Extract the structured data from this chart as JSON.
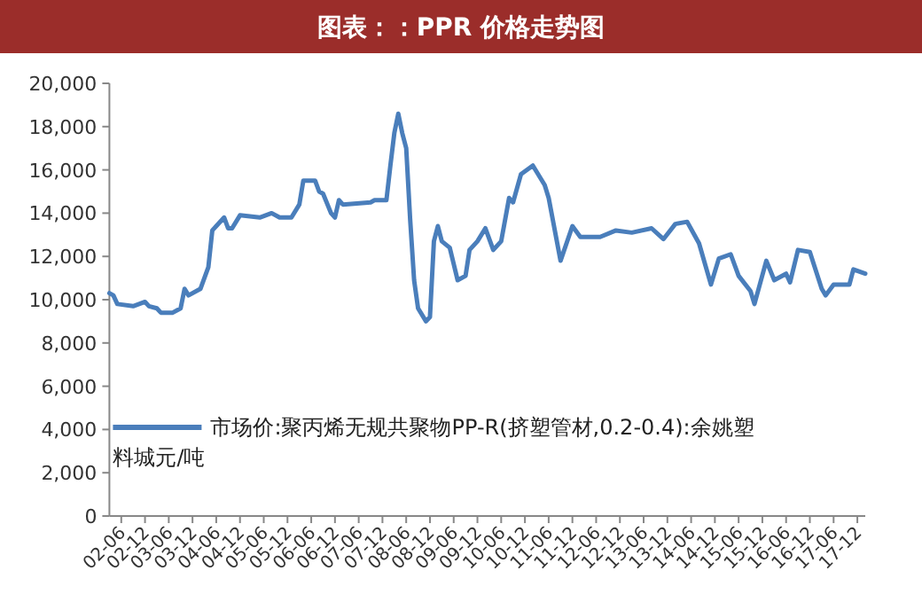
{
  "chart_data": {
    "type": "line",
    "title": "图表：：PPR 价格走势图",
    "x": [
      "2002-03",
      "2002-04",
      "2002-05",
      "2002-09",
      "2002-12",
      "2003-01",
      "2003-03",
      "2003-04",
      "2003-07",
      "2003-09",
      "2003-10",
      "2003-11",
      "2004-02",
      "2004-04",
      "2004-05",
      "2004-06",
      "2004-08",
      "2004-09",
      "2004-10",
      "2004-12",
      "2005-05",
      "2005-08",
      "2005-10",
      "2006-01",
      "2006-03",
      "2006-04",
      "2006-07",
      "2006-08",
      "2006-09",
      "2006-11",
      "2006-12",
      "2007-01",
      "2007-02",
      "2007-09",
      "2007-10",
      "2008-01",
      "2008-02",
      "2008-03",
      "2008-04",
      "2008-05",
      "2008-06",
      "2008-07",
      "2008-08",
      "2008-09",
      "2008-11",
      "2008-12",
      "2009-01",
      "2009-02",
      "2009-03",
      "2009-05",
      "2009-07",
      "2009-09",
      "2009-10",
      "2009-12",
      "2010-02",
      "2010-04",
      "2010-06",
      "2010-08",
      "2010-09",
      "2010-11",
      "2011-02",
      "2011-05",
      "2011-06",
      "2011-09",
      "2011-12",
      "2012-02",
      "2012-07",
      "2012-11",
      "2013-03",
      "2013-08",
      "2013-11",
      "2014-02",
      "2014-05",
      "2014-08",
      "2014-11",
      "2015-01",
      "2015-04",
      "2015-06",
      "2015-09",
      "2015-10",
      "2016-01",
      "2016-03",
      "2016-06",
      "2016-07",
      "2016-09",
      "2016-12",
      "2017-03",
      "2017-04",
      "2017-06",
      "2017-10",
      "2017-11",
      "2018-02"
    ],
    "series": [
      {
        "name": "市场价:聚丙烯无规共聚物PP-R(挤塑管材,0.2-0.4):余姚塑料城元/吨",
        "color": "#4a7ebb",
        "values": [
          10300,
          10200,
          9800,
          9700,
          9900,
          9700,
          9600,
          9400,
          9400,
          9600,
          10500,
          10200,
          10500,
          11500,
          13200,
          13400,
          13800,
          13300,
          13300,
          13900,
          13800,
          14000,
          13800,
          13800,
          14400,
          15500,
          15500,
          15000,
          14900,
          14000,
          13800,
          14600,
          14400,
          14500,
          14600,
          14600,
          16200,
          17700,
          18600,
          17700,
          17000,
          13700,
          10900,
          9600,
          9000,
          9200,
          12700,
          13400,
          12700,
          12400,
          10900,
          11100,
          12300,
          12700,
          13300,
          12300,
          12700,
          14700,
          14500,
          15800,
          16200,
          15300,
          14700,
          11800,
          13400,
          12900,
          12900,
          13200,
          13100,
          13300,
          12800,
          13500,
          13600,
          12600,
          10700,
          11900,
          12100,
          11100,
          10400,
          9800,
          11800,
          10900,
          11200,
          10800,
          12300,
          12200,
          10500,
          10200,
          10700,
          10700,
          11400,
          11200
        ]
      }
    ],
    "xlim": [
      "2002-03",
      "2018-02"
    ],
    "xticks": [
      {
        "value": "2002-06",
        "label": "02-06"
      },
      {
        "value": "2002-12",
        "label": "02-12"
      },
      {
        "value": "2003-06",
        "label": "03-06"
      },
      {
        "value": "2003-12",
        "label": "03-12"
      },
      {
        "value": "2004-06",
        "label": "04-06"
      },
      {
        "value": "2004-12",
        "label": "04-12"
      },
      {
        "value": "2005-06",
        "label": "05-06"
      },
      {
        "value": "2005-12",
        "label": "05-12"
      },
      {
        "value": "2006-06",
        "label": "06-06"
      },
      {
        "value": "2006-12",
        "label": "06-12"
      },
      {
        "value": "2007-06",
        "label": "07-06"
      },
      {
        "value": "2007-12",
        "label": "07-12"
      },
      {
        "value": "2008-06",
        "label": "08-06"
      },
      {
        "value": "2008-12",
        "label": "08-12"
      },
      {
        "value": "2009-06",
        "label": "09-06"
      },
      {
        "value": "2009-12",
        "label": "09-12"
      },
      {
        "value": "2010-06",
        "label": "10-06"
      },
      {
        "value": "2010-12",
        "label": "10-12"
      },
      {
        "value": "2011-06",
        "label": "11-06"
      },
      {
        "value": "2011-12",
        "label": "11-12"
      },
      {
        "value": "2012-06",
        "label": "12-06"
      },
      {
        "value": "2012-12",
        "label": "12-12"
      },
      {
        "value": "2013-06",
        "label": "13-06"
      },
      {
        "value": "2013-12",
        "label": "13-12"
      },
      {
        "value": "2014-06",
        "label": "14-06"
      },
      {
        "value": "2014-12",
        "label": "14-12"
      },
      {
        "value": "2015-06",
        "label": "15-06"
      },
      {
        "value": "2015-12",
        "label": "15-12"
      },
      {
        "value": "2016-06",
        "label": "16-06"
      },
      {
        "value": "2016-12",
        "label": "16-12"
      },
      {
        "value": "2017-06",
        "label": "17-06"
      },
      {
        "value": "2017-12",
        "label": "17-12"
      }
    ],
    "ylim": [
      0,
      20000
    ],
    "yticks": [
      {
        "value": 0,
        "label": "0"
      },
      {
        "value": 2000,
        "label": "2,000"
      },
      {
        "value": 4000,
        "label": "4,000"
      },
      {
        "value": 6000,
        "label": "6,000"
      },
      {
        "value": 8000,
        "label": "8,000"
      },
      {
        "value": 10000,
        "label": "10,000"
      },
      {
        "value": 12000,
        "label": "12,000"
      },
      {
        "value": 14000,
        "label": "14,000"
      },
      {
        "value": 16000,
        "label": "16,000"
      },
      {
        "value": 18000,
        "label": "18,000"
      },
      {
        "value": 20000,
        "label": "20,000"
      }
    ],
    "legend": "bottom left",
    "grid": false,
    "marker": "none",
    "line_style": "solid"
  }
}
